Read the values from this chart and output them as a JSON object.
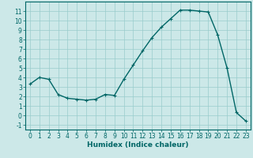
{
  "xlabel": "Humidex (Indice chaleur)",
  "background_color": "#cce8e8",
  "line_color": "#006666",
  "grid_color": "#99cccc",
  "x_values": [
    0,
    1,
    2,
    3,
    4,
    5,
    6,
    7,
    8,
    9,
    10,
    11,
    12,
    13,
    14,
    15,
    16,
    17,
    18,
    19,
    20,
    21,
    22,
    23
  ],
  "y_values": [
    3.3,
    4.0,
    3.8,
    2.2,
    1.8,
    1.7,
    1.6,
    1.7,
    2.2,
    2.1,
    3.8,
    5.3,
    6.8,
    8.2,
    9.3,
    10.2,
    11.1,
    11.1,
    11.0,
    10.9,
    8.5,
    5.0,
    0.3,
    -0.6
  ],
  "ylim": [
    -1.5,
    12
  ],
  "xlim": [
    -0.5,
    23.5
  ],
  "yticks": [
    -1,
    0,
    1,
    2,
    3,
    4,
    5,
    6,
    7,
    8,
    9,
    10,
    11
  ],
  "xticks": [
    0,
    1,
    2,
    3,
    4,
    5,
    6,
    7,
    8,
    9,
    10,
    11,
    12,
    13,
    14,
    15,
    16,
    17,
    18,
    19,
    20,
    21,
    22,
    23
  ],
  "marker": "+",
  "marker_size": 3,
  "line_width": 1.0,
  "label_fontsize": 6.5,
  "tick_fontsize": 5.5
}
